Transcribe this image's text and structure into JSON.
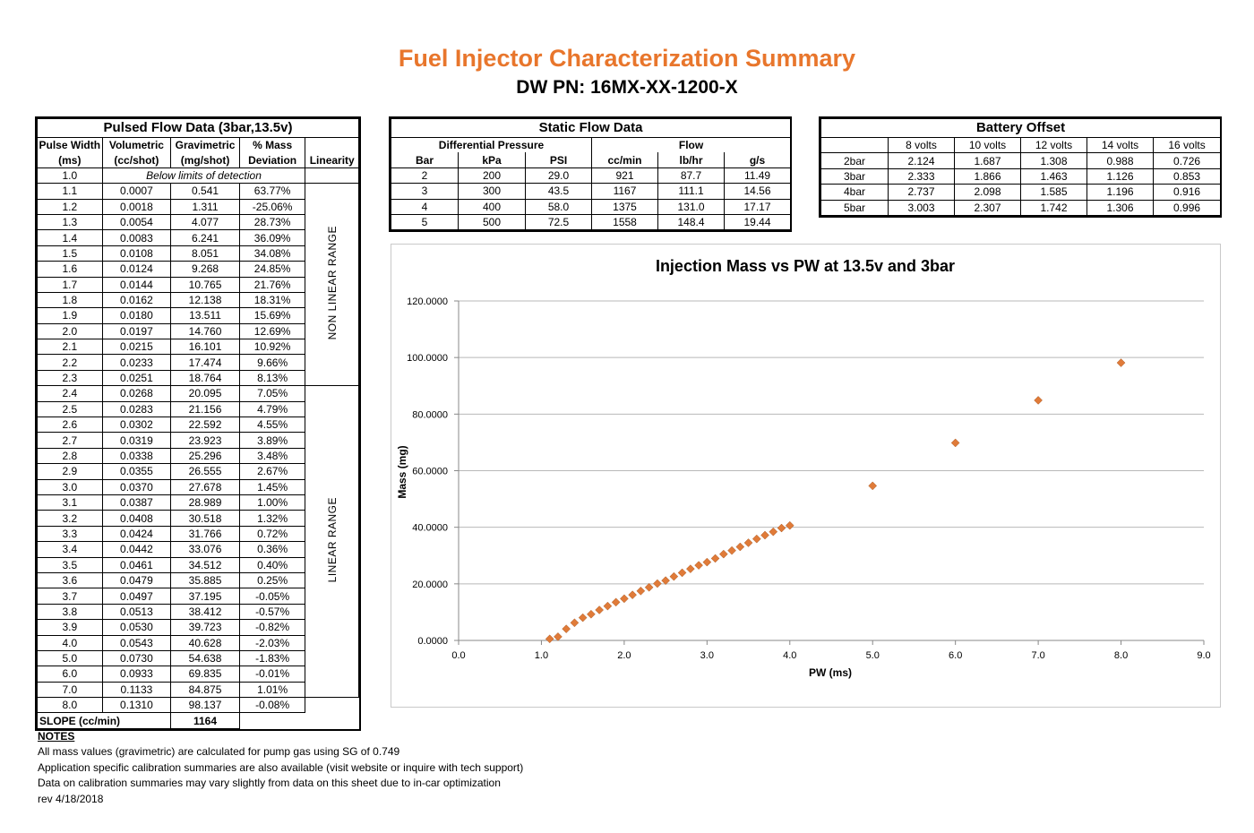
{
  "header": {
    "title": "Fuel Injector Characterization Summary",
    "part_number": "DW PN: 16MX-XX-1200-X"
  },
  "pulsed": {
    "title": "Pulsed Flow Data (3bar,13.5v)",
    "headers": {
      "pw": [
        "Pulse Width",
        "(ms)"
      ],
      "vol": [
        "Volumetric",
        "(cc/shot)"
      ],
      "grav": [
        "Gravimetric",
        "(mg/shot)"
      ],
      "dev": [
        "% Mass",
        "Deviation"
      ],
      "lin": "Linearity"
    },
    "first_row": {
      "pw": "1.0",
      "note": "Below limits of detection"
    },
    "rows": [
      [
        "1.1",
        "0.0007",
        "0.541",
        "63.77%"
      ],
      [
        "1.2",
        "0.0018",
        "1.311",
        "-25.06%"
      ],
      [
        "1.3",
        "0.0054",
        "4.077",
        "28.73%"
      ],
      [
        "1.4",
        "0.0083",
        "6.241",
        "36.09%"
      ],
      [
        "1.5",
        "0.0108",
        "8.051",
        "34.08%"
      ],
      [
        "1.6",
        "0.0124",
        "9.268",
        "24.85%"
      ],
      [
        "1.7",
        "0.0144",
        "10.765",
        "21.76%"
      ],
      [
        "1.8",
        "0.0162",
        "12.138",
        "18.31%"
      ],
      [
        "1.9",
        "0.0180",
        "13.511",
        "15.69%"
      ],
      [
        "2.0",
        "0.0197",
        "14.760",
        "12.69%"
      ],
      [
        "2.1",
        "0.0215",
        "16.101",
        "10.92%"
      ],
      [
        "2.2",
        "0.0233",
        "17.474",
        "9.66%"
      ],
      [
        "2.3",
        "0.0251",
        "18.764",
        "8.13%"
      ],
      [
        "2.4",
        "0.0268",
        "20.095",
        "7.05%"
      ],
      [
        "2.5",
        "0.0283",
        "21.156",
        "4.79%"
      ],
      [
        "2.6",
        "0.0302",
        "22.592",
        "4.55%"
      ],
      [
        "2.7",
        "0.0319",
        "23.923",
        "3.89%"
      ],
      [
        "2.8",
        "0.0338",
        "25.296",
        "3.48%"
      ],
      [
        "2.9",
        "0.0355",
        "26.555",
        "2.67%"
      ],
      [
        "3.0",
        "0.0370",
        "27.678",
        "1.45%"
      ],
      [
        "3.1",
        "0.0387",
        "28.989",
        "1.00%"
      ],
      [
        "3.2",
        "0.0408",
        "30.518",
        "1.32%"
      ],
      [
        "3.3",
        "0.0424",
        "31.766",
        "0.72%"
      ],
      [
        "3.4",
        "0.0442",
        "33.076",
        "0.36%"
      ],
      [
        "3.5",
        "0.0461",
        "34.512",
        "0.40%"
      ],
      [
        "3.6",
        "0.0479",
        "35.885",
        "0.25%"
      ],
      [
        "3.7",
        "0.0497",
        "37.195",
        "-0.05%"
      ],
      [
        "3.8",
        "0.0513",
        "38.412",
        "-0.57%"
      ],
      [
        "3.9",
        "0.0530",
        "39.723",
        "-0.82%"
      ],
      [
        "4.0",
        "0.0543",
        "40.628",
        "-2.03%"
      ],
      [
        "5.0",
        "0.0730",
        "54.638",
        "-1.83%"
      ],
      [
        "6.0",
        "0.0933",
        "69.835",
        "-0.01%"
      ],
      [
        "7.0",
        "0.1133",
        "84.875",
        "1.01%"
      ],
      [
        "8.0",
        "0.1310",
        "98.137",
        "-0.08%"
      ]
    ],
    "non_linear_label": "NON LINEAR RANGE",
    "linear_label": "LINEAR RANGE",
    "slope_label": "SLOPE (cc/min)",
    "slope_value": "1164"
  },
  "static": {
    "title": "Static Flow Data",
    "group_headers": [
      "Differential Pressure",
      "Flow"
    ],
    "columns": [
      "Bar",
      "kPa",
      "PSI",
      "cc/min",
      "lb/hr",
      "g/s"
    ],
    "rows": [
      [
        "2",
        "200",
        "29.0",
        "921",
        "87.7",
        "11.49"
      ],
      [
        "3",
        "300",
        "43.5",
        "1167",
        "111.1",
        "14.56"
      ],
      [
        "4",
        "400",
        "58.0",
        "1375",
        "131.0",
        "17.17"
      ],
      [
        "5",
        "500",
        "72.5",
        "1558",
        "148.4",
        "19.44"
      ]
    ]
  },
  "battery": {
    "title": "Battery Offset",
    "columns": [
      "",
      "8 volts",
      "10 volts",
      "12 volts",
      "14 volts",
      "16 volts"
    ],
    "rows": [
      [
        "2bar",
        "2.124",
        "1.687",
        "1.308",
        "0.988",
        "0.726"
      ],
      [
        "3bar",
        "2.333",
        "1.866",
        "1.463",
        "1.126",
        "0.853"
      ],
      [
        "4bar",
        "2.737",
        "2.098",
        "1.585",
        "1.196",
        "0.916"
      ],
      [
        "5bar",
        "3.003",
        "2.307",
        "1.742",
        "1.306",
        "0.996"
      ]
    ]
  },
  "chart_data": {
    "type": "scatter",
    "title": "Injection Mass vs PW at 13.5v and 3bar",
    "xlabel": "PW (ms)",
    "ylabel": "Mass (mg)",
    "xlim": [
      0,
      9
    ],
    "ylim": [
      0,
      120
    ],
    "xticks": [
      "0.0",
      "1.0",
      "2.0",
      "3.0",
      "4.0",
      "5.0",
      "6.0",
      "7.0",
      "8.0",
      "9.0"
    ],
    "yticks": [
      "0.0000",
      "20.0000",
      "40.0000",
      "60.0000",
      "80.0000",
      "100.0000",
      "120.0000"
    ],
    "grid": "horizontal",
    "marker_color": "#E07B39",
    "series": [
      {
        "x": [
          1.1,
          1.2,
          1.3,
          1.4,
          1.5,
          1.6,
          1.7,
          1.8,
          1.9,
          2.0,
          2.1,
          2.2,
          2.3,
          2.4,
          2.5,
          2.6,
          2.7,
          2.8,
          2.9,
          3.0,
          3.1,
          3.2,
          3.3,
          3.4,
          3.5,
          3.6,
          3.7,
          3.8,
          3.9,
          4.0,
          5.0,
          6.0,
          7.0,
          8.0
        ],
        "y": [
          0.541,
          1.311,
          4.077,
          6.241,
          8.051,
          9.268,
          10.765,
          12.138,
          13.511,
          14.76,
          16.101,
          17.474,
          18.764,
          20.095,
          21.156,
          22.592,
          23.923,
          25.296,
          26.555,
          27.678,
          28.989,
          30.518,
          31.766,
          33.076,
          34.512,
          35.885,
          37.195,
          38.412,
          39.723,
          40.628,
          54.638,
          69.835,
          84.875,
          98.137
        ]
      }
    ]
  },
  "notes": {
    "heading": "NOTES",
    "lines": [
      "All mass values (gravimetric) are calculated for pump gas using SG of 0.749",
      "Application specific calibration summaries are also available (visit website or inquire with tech support)",
      "Data on calibration summaries may vary slightly from data on this sheet due to in-car optimization",
      "rev 4/18/2018"
    ]
  }
}
